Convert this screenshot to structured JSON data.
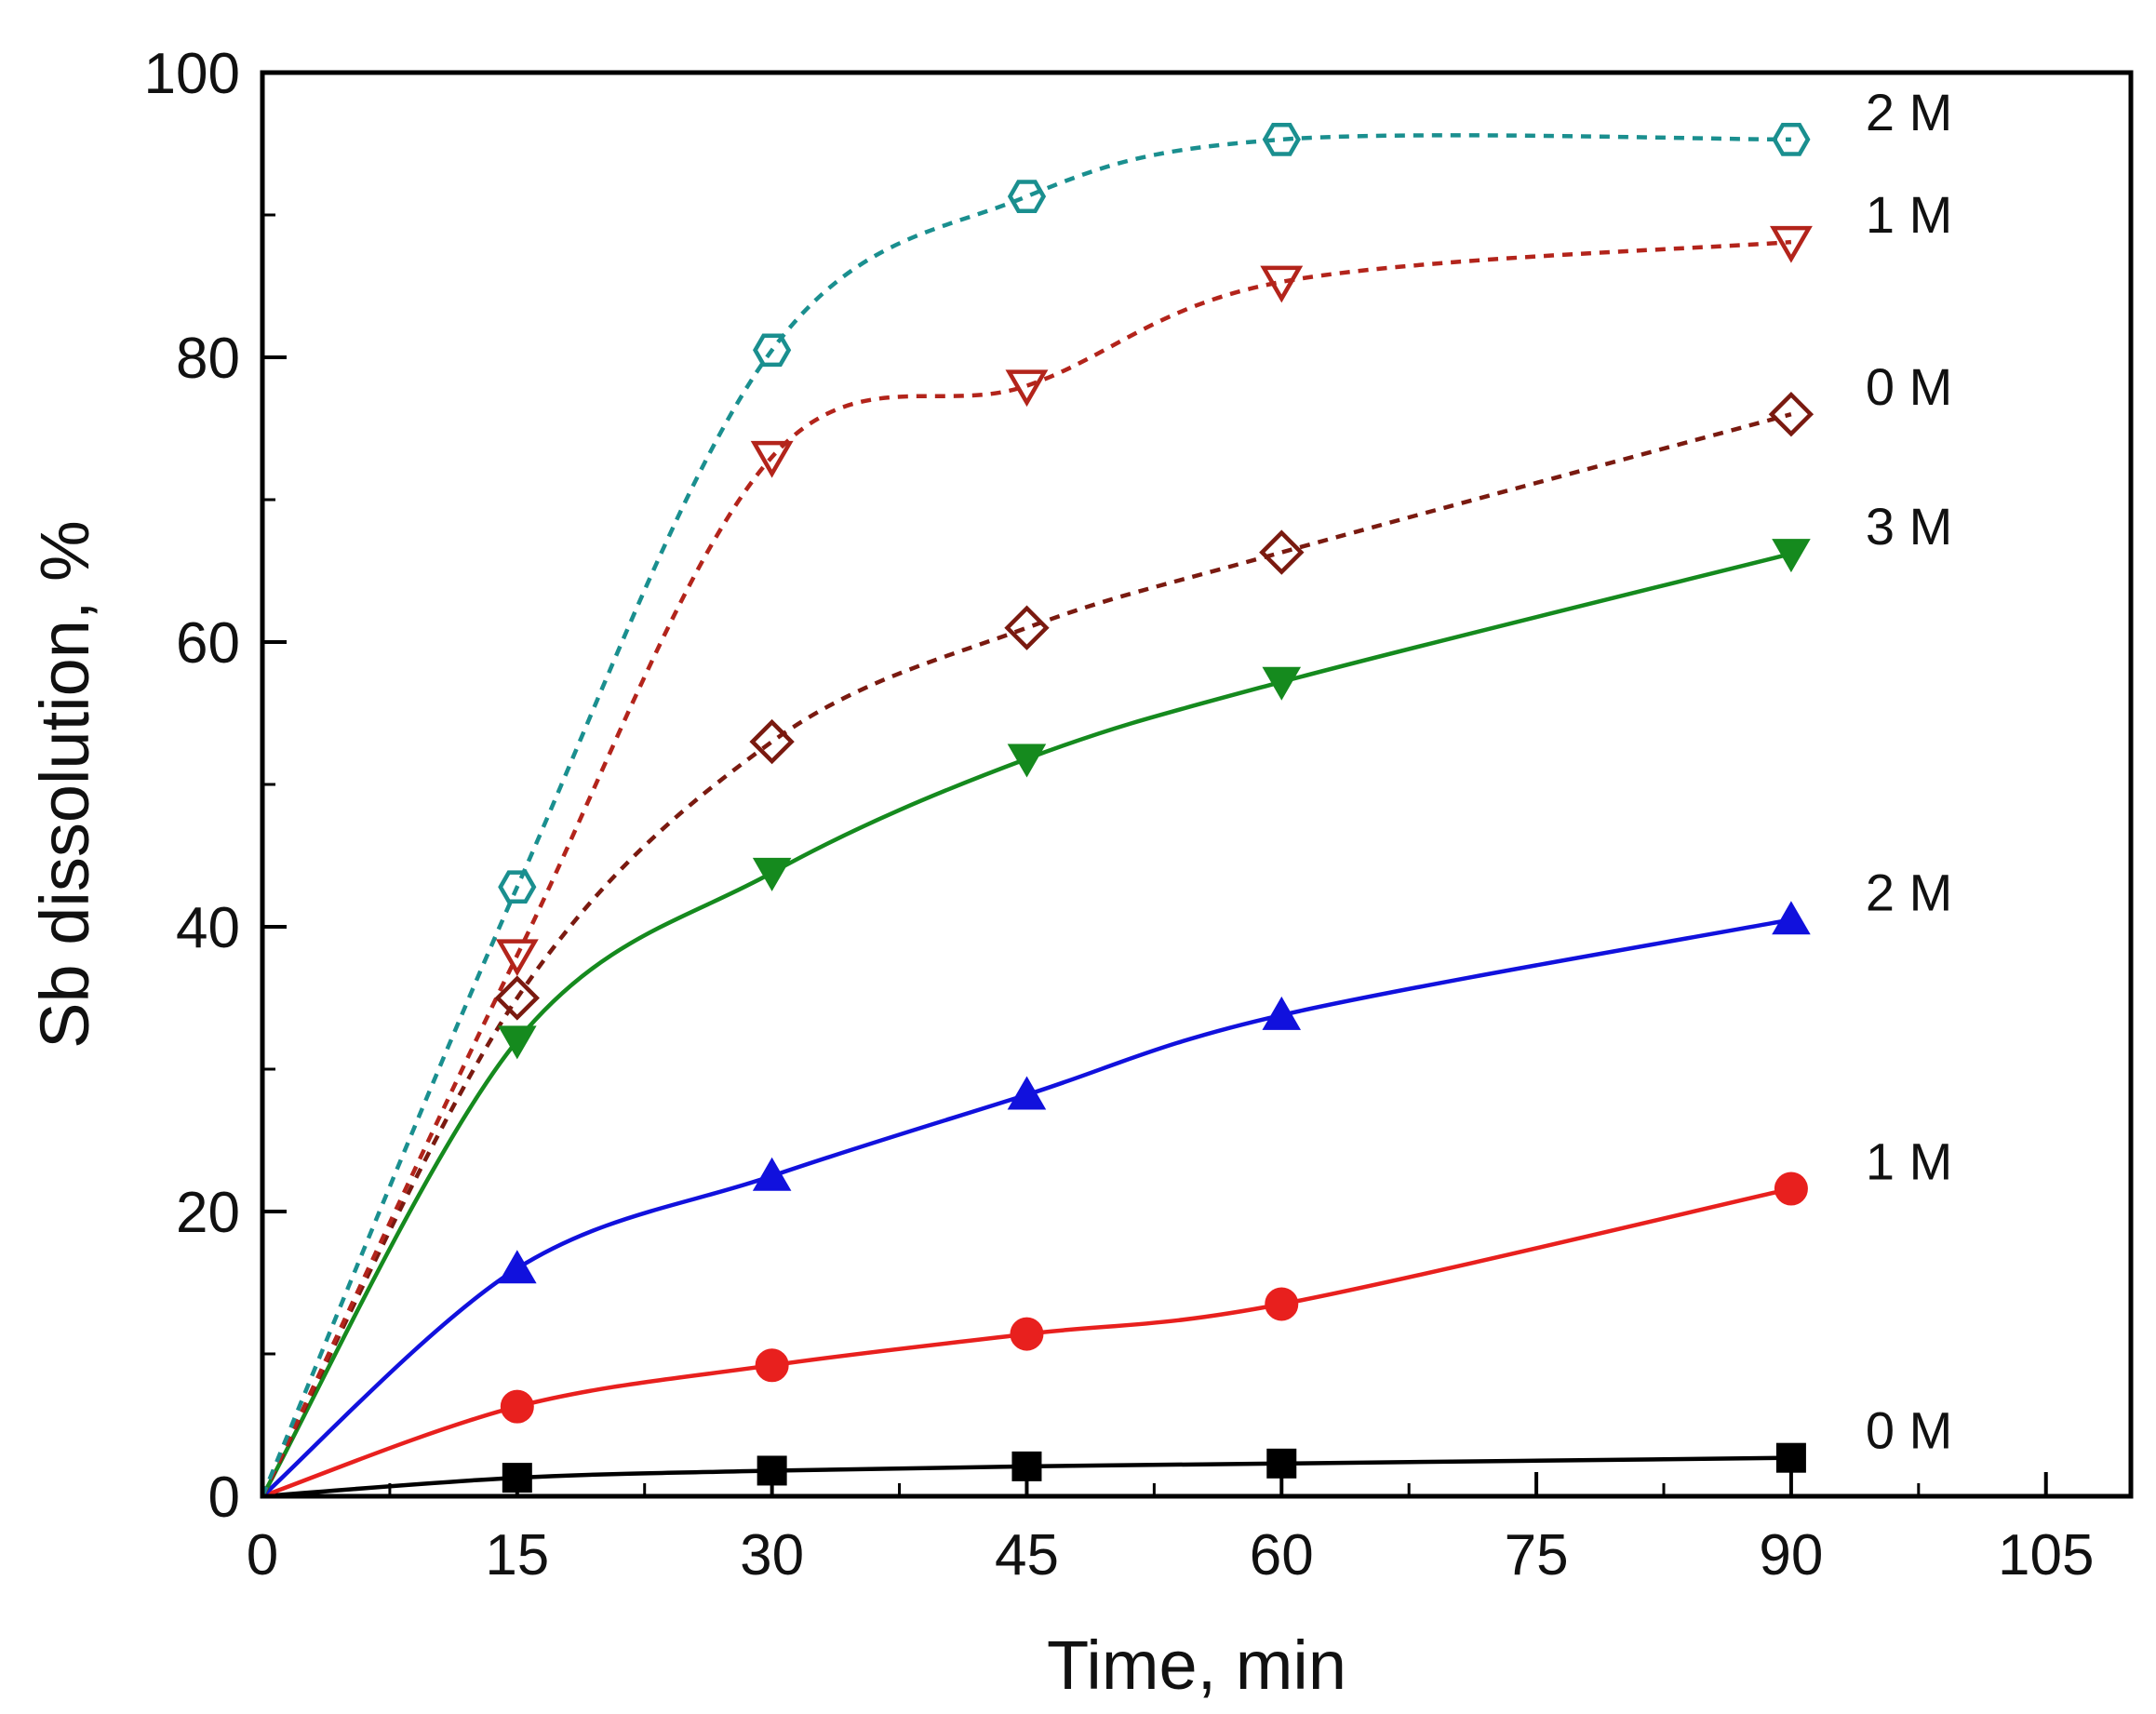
{
  "chart_data": {
    "type": "scatter",
    "title": "",
    "xlabel": "Time, min",
    "ylabel": "Sb dissolution, %",
    "xlim": [
      0,
      110
    ],
    "ylim": [
      0,
      100
    ],
    "x_ticks": [
      0,
      15,
      30,
      45,
      60,
      75,
      90,
      105
    ],
    "y_ticks": [
      0,
      20,
      40,
      60,
      80,
      100
    ],
    "grid": false,
    "legend": "inline labels at right end of each series",
    "series": [
      {
        "name": "0 M",
        "label": "0 M",
        "marker": "square",
        "filled": true,
        "color": "#000000",
        "line": "solid",
        "x": [
          0,
          15,
          30,
          45,
          60,
          90
        ],
        "y": [
          0,
          1.3,
          1.8,
          2.1,
          2.3,
          2.7
        ]
      },
      {
        "name": "1 M",
        "label": "1 M",
        "marker": "circle",
        "filled": true,
        "color": "#e8201e",
        "line": "solid",
        "x": [
          0,
          15,
          30,
          45,
          60,
          90
        ],
        "y": [
          0,
          6.3,
          9.2,
          11.4,
          13.5,
          21.6
        ]
      },
      {
        "name": "2 M",
        "label": "2 M",
        "marker": "triangle-up",
        "filled": true,
        "color": "#1111dd",
        "line": "solid",
        "x": [
          0,
          15,
          30,
          45,
          60,
          90
        ],
        "y": [
          0,
          16.0,
          22.5,
          28.2,
          33.8,
          40.5
        ]
      },
      {
        "name": "3 M",
        "label": "3 M",
        "marker": "triangle-down",
        "filled": true,
        "color": "#158a1e",
        "line": "solid",
        "x": [
          0,
          15,
          30,
          45,
          60,
          90
        ],
        "y": [
          0,
          32.0,
          43.8,
          51.8,
          57.2,
          66.2
        ]
      },
      {
        "name": "0 M",
        "label": "0 M",
        "marker": "diamond",
        "filled": false,
        "color": "#7a1a10",
        "line": "dashed",
        "x": [
          0,
          15,
          30,
          45,
          60,
          90
        ],
        "y": [
          0,
          35.0,
          53.0,
          61.0,
          66.3,
          76.0
        ]
      },
      {
        "name": "1 M",
        "label": "1 M",
        "marker": "triangle-down",
        "filled": false,
        "color": "#b3241b",
        "line": "dashed",
        "x": [
          0,
          15,
          30,
          45,
          60,
          90
        ],
        "y": [
          0,
          38.0,
          73.0,
          78.0,
          85.3,
          88.1
        ]
      },
      {
        "name": "2 M",
        "label": "2 M",
        "marker": "hexagon",
        "filled": false,
        "color": "#1a8f8f",
        "line": "dashed",
        "x": [
          0,
          15,
          30,
          45,
          60,
          90
        ],
        "y": [
          0,
          42.8,
          80.5,
          91.3,
          95.3,
          95.3
        ]
      }
    ]
  }
}
